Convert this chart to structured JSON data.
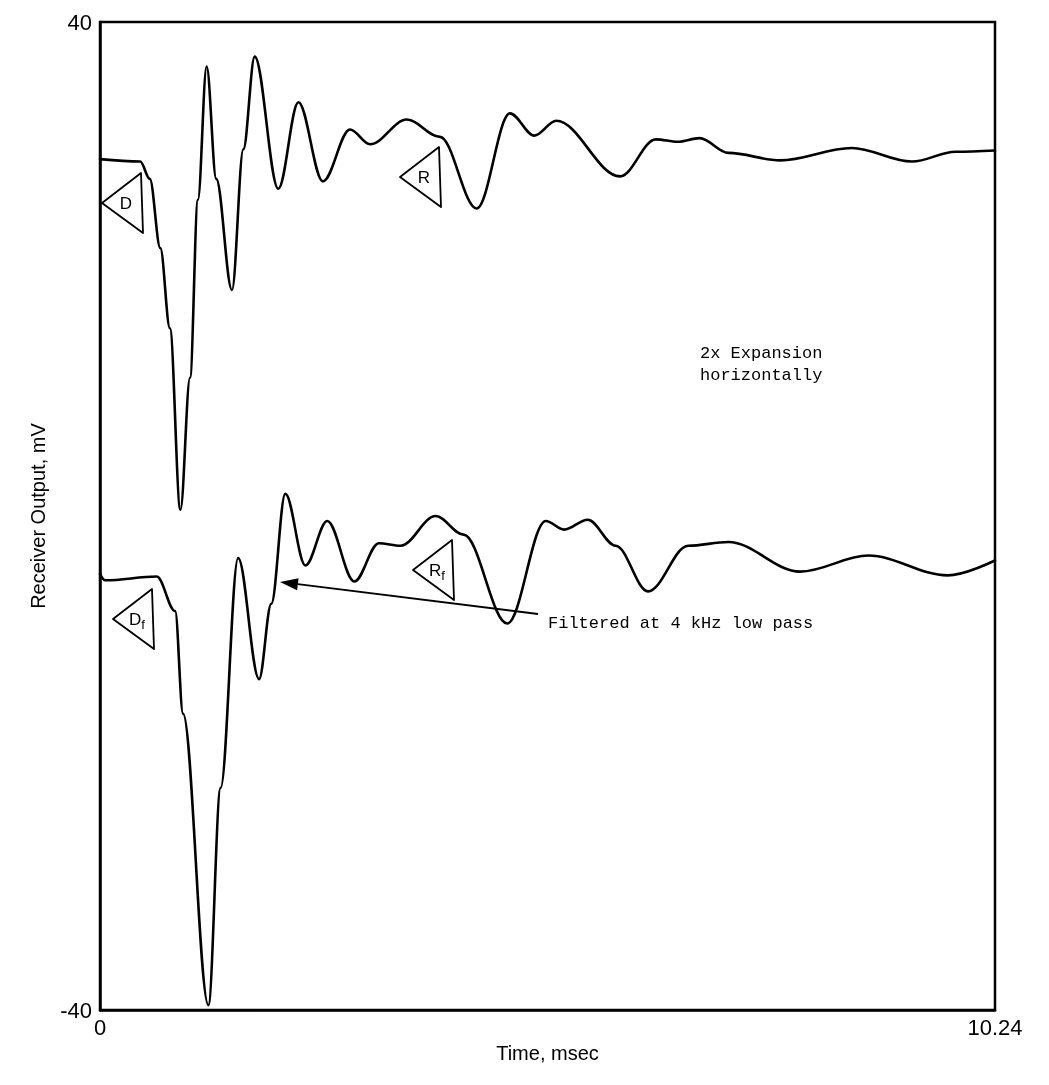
{
  "chart_data": {
    "type": "line",
    "xlabel": "Time, msec",
    "ylabel": "Receiver Output, mV",
    "xlim": [
      0,
      10.24
    ],
    "xticks": [
      0,
      10.24
    ],
    "ylim": [
      -40,
      40
    ],
    "yticks": [
      -40,
      40
    ],
    "grid": false,
    "marker": "none",
    "line_style": "solid",
    "series": [
      {
        "color": "#000000",
        "x": [
          0,
          0.46,
          0.57,
          0.69,
          0.8,
          0.92,
          1.03,
          1.12,
          1.22,
          1.33,
          1.51,
          1.64,
          1.77,
          2.04,
          2.27,
          2.55,
          2.86,
          3.09,
          3.51,
          3.89,
          4.31,
          4.69,
          4.97,
          5.22,
          5.95,
          6.36,
          6.61,
          6.86,
          7.19,
          7.78,
          8.6,
          9.29,
          9.79,
          10.24
        ],
        "values": [
          28.9,
          28.7,
          27.3,
          21.7,
          15.2,
          0.5,
          11.2,
          25.6,
          36.4,
          27.3,
          18.3,
          29.7,
          37.2,
          26.5,
          33.5,
          27.1,
          31.3,
          30.1,
          32.1,
          30.7,
          24.9,
          32.6,
          30.8,
          32.0,
          27.5,
          30.5,
          30.3,
          30.6,
          29.4,
          28.8,
          29.8,
          28.7,
          29.5,
          29.6
        ]
      },
      {
        "color": "#000000",
        "x": [
          0,
          0.06,
          0.65,
          0.86,
          0.95,
          1.24,
          1.38,
          1.58,
          1.82,
          1.96,
          2.12,
          2.35,
          2.6,
          2.91,
          3.19,
          3.44,
          3.84,
          4.16,
          4.66,
          5.1,
          5.31,
          5.58,
          5.9,
          6.27,
          6.73,
          7.19,
          8.01,
          8.79,
          9.7,
          10.24
        ],
        "values": [
          -4.7,
          -5.2,
          -4.9,
          -7.7,
          -16.0,
          -39.6,
          -22.0,
          -3.4,
          -13.2,
          -7.1,
          1.8,
          -4.0,
          -0.4,
          -5.3,
          -2.2,
          -2.4,
          0.0,
          -1.5,
          -8.7,
          -0.4,
          -1.1,
          -0.3,
          -2.4,
          -6.1,
          -2.4,
          -2.1,
          -4.5,
          -3.2,
          -4.8,
          -3.6
        ]
      }
    ],
    "annotations": [
      "D",
      "R",
      "D$_{f}$",
      "R$_{f}$",
      "Filtered at 4 kHz low pass",
      "2x Expansion horizontally"
    ]
  }
}
